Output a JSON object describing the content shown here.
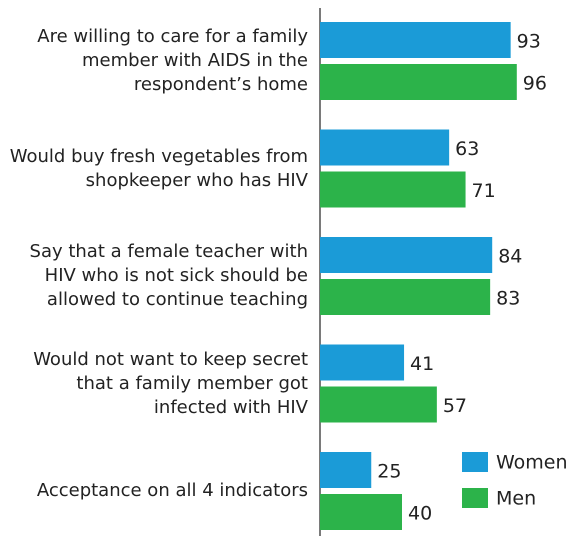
{
  "chart_data": {
    "type": "bar",
    "orientation": "horizontal",
    "categories": [
      "Are willing to care for a family member with AIDS in the respondent’s home",
      "Would buy fresh vegetables from shopkeeper who has HIV",
      "Say that a female teacher with HIV who is not sick should be allowed to continue teaching",
      "Would not want to keep secret that a family member got infected with HIV",
      "Acceptance on all 4 indicators"
    ],
    "series": [
      {
        "name": "Women",
        "color": "#1b9bd7",
        "values": [
          93,
          63,
          84,
          41,
          25
        ]
      },
      {
        "name": "Men",
        "color": "#2cb34a",
        "values": [
          96,
          71,
          83,
          57,
          40
        ]
      }
    ],
    "xlim": [
      0,
      100
    ],
    "legend": "lower right"
  }
}
